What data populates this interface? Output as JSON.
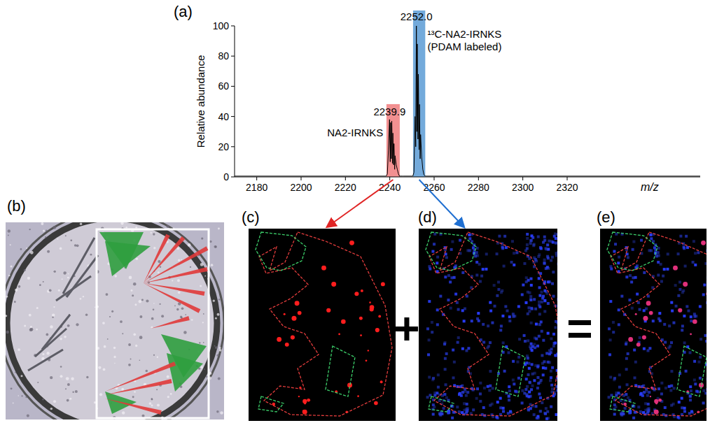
{
  "panels": {
    "labels": [
      "(a)",
      "(b)",
      "(c)",
      "(d)",
      "(e)"
    ],
    "operators": [
      "+",
      "="
    ]
  },
  "chart_data": {
    "type": "line",
    "xlabel": "m/z",
    "ylabel": "Relative abundance",
    "xlim": [
      2170,
      2380
    ],
    "xticks": [
      2180,
      2200,
      2220,
      2240,
      2260,
      2280,
      2300,
      2320
    ],
    "ylim": [
      0,
      100
    ],
    "yticks": [
      0,
      20,
      40,
      60,
      80,
      100
    ],
    "grid": false,
    "x": [
      2170,
      2236,
      2238.4,
      2238.9,
      2239.4,
      2239.9,
      2240.2,
      2240.4,
      2240.7,
      2240.9,
      2241.2,
      2241.4,
      2241.7,
      2241.9,
      2242.2,
      2242.4,
      2242.9,
      2243.4,
      2243.9,
      2244.4,
      2246,
      2250.4,
      2250.9,
      2251.4,
      2251.7,
      2252.0,
      2252.2,
      2252.4,
      2252.7,
      2252.9,
      2253.2,
      2253.4,
      2253.7,
      2253.9,
      2254.4,
      2254.9,
      2255.4,
      2256,
      2380
    ],
    "series": [
      {
        "color": "#000000",
        "values": [
          0.5,
          0.5,
          0.5,
          2,
          18,
          38,
          10,
          36,
          12,
          37,
          9,
          29,
          8,
          22,
          5,
          14,
          8,
          5,
          2,
          0.5,
          0.5,
          0.5,
          3,
          40,
          20,
          100,
          30,
          88,
          25,
          68,
          18,
          48,
          12,
          28,
          13,
          5,
          1.5,
          0.5,
          0.5
        ]
      }
    ],
    "highlights": [
      {
        "xmin": 2238.5,
        "xmax": 2244.5,
        "color": "#f07c7e"
      },
      {
        "xmin": 2250.5,
        "xmax": 2256,
        "color": "#5b9bd5"
      }
    ],
    "annotations": [
      {
        "text": "2252.0",
        "x": 2252.0,
        "y": 100
      },
      {
        "text": "¹³C-NA2-IRNKS (PDAM labeled)",
        "x": 2257,
        "y": 92
      },
      {
        "text": "2239.9",
        "x": 2239.9,
        "y": 38
      },
      {
        "text": "NA2-IRNKS",
        "x": 2237,
        "y": 27
      }
    ]
  }
}
